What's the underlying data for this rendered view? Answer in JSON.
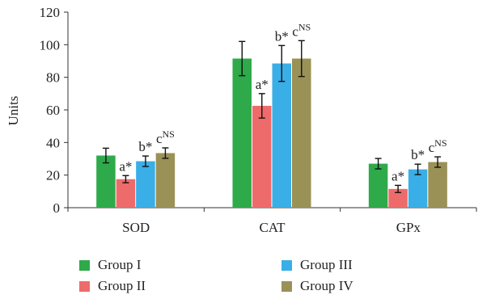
{
  "chart_data": {
    "type": "bar",
    "categories": [
      "SOD",
      "CAT",
      "GPx"
    ],
    "ylabel": "Units",
    "ylim": [
      0,
      120
    ],
    "yticks": [
      0,
      20,
      40,
      60,
      80,
      100,
      120
    ],
    "grid": false,
    "legend_position": "bottom",
    "series": [
      {
        "name": "Group I",
        "color": "#2eaa4a",
        "values": [
          32,
          91.5,
          27
        ],
        "errors": [
          4.5,
          10.5,
          3.2
        ],
        "annotations": [
          "",
          "",
          ""
        ]
      },
      {
        "name": "Group II",
        "color": "#ee6b6b",
        "values": [
          17.5,
          62.5,
          11.5
        ],
        "errors": [
          2.2,
          7.5,
          2.2
        ],
        "annotations": [
          "a*",
          "a*",
          "a*"
        ]
      },
      {
        "name": "Group III",
        "color": "#3aaee6",
        "values": [
          28.5,
          88.5,
          23.5
        ],
        "errors": [
          3.2,
          11,
          3.2
        ],
        "annotations": [
          "b*",
          "b*",
          "b*"
        ]
      },
      {
        "name": "Group IV",
        "color": "#9a9157",
        "values": [
          33.5,
          91.5,
          28
        ],
        "errors": [
          3.2,
          11,
          3.2
        ],
        "annotations": [
          "c^NS",
          "c^NS",
          "c^NS"
        ]
      }
    ]
  }
}
